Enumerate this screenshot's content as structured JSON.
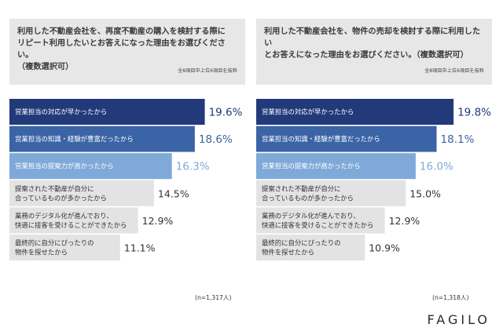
{
  "chart_data": [
    {
      "type": "bar",
      "title": "利用した不動産会社を、再度不動産の購入を検討する際に\nリピート利用したいとお答えになった理由をお選びください。\n（複数選択可）",
      "subtitle": "全8項目中上位6項目を抜粋",
      "categories": [
        "営業担当の対応が早かったから",
        "営業担当の知識・経験が豊富だったから",
        "営業担当の提案力が高かったから",
        "提案された不動産が自分に\n合っているものが多かったから",
        "業務のデジタル化が進んでおり、\n快適に接客を受けることができたから",
        "最終的に自分にぴったりの\n物件を探せたから"
      ],
      "values": [
        19.6,
        18.6,
        16.3,
        14.5,
        12.9,
        11.1
      ],
      "value_labels": [
        "19.6%",
        "18.6%",
        "16.3%",
        "14.5%",
        "12.9%",
        "11.1%"
      ],
      "orientation": "horizontal",
      "xlim": [
        0,
        22
      ],
      "sample": "(n=1,317人)"
    },
    {
      "type": "bar",
      "title": "利用した不動産会社を、物件の売却を検討する際に利用したい\nとお答えになった理由をお選びください。（複数選択可）",
      "subtitle": "全8項目中上位6項目を抜粋",
      "categories": [
        "営業担当の対応が早かったから",
        "営業担当の知識・経験が豊富だったから",
        "営業担当の提案力が高かったから",
        "提案された不動産が自分に\n合っているものが多かったから",
        "業務のデジタル化が進んでおり、\n快適に接客を受けることができたから",
        "最終的に自分にぴったりの\n物件を探せたから"
      ],
      "values": [
        19.8,
        18.1,
        16.0,
        15.0,
        12.9,
        10.9
      ],
      "value_labels": [
        "19.8%",
        "18.1%",
        "16.0%",
        "15.0%",
        "12.9%",
        "10.9%"
      ],
      "orientation": "horizontal",
      "xlim": [
        0,
        22
      ],
      "sample": "(n=1,318人)"
    }
  ],
  "colors": {
    "bar_1": "#22397a",
    "bar_2": "#3b64a6",
    "bar_3": "#7fa9d8",
    "bar_rest": "#e3e3e3",
    "value_dark": "#22397a",
    "value_mid": "#3b64a6",
    "value_light": "#7fa9d8",
    "value_gray": "#333333"
  },
  "brand": "FAGILO"
}
